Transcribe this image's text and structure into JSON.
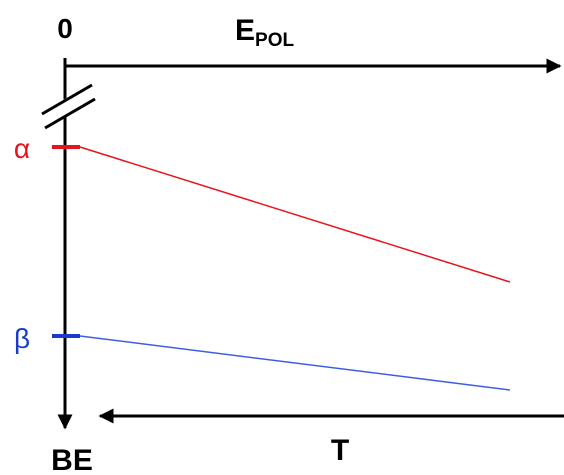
{
  "axes": {
    "origin": "0",
    "top_label": "E",
    "top_label_sub": "POL",
    "left_label": "BE",
    "bottom_label": "T"
  },
  "levels": [
    {
      "label": "α"
    },
    {
      "label": "β"
    }
  ]
}
